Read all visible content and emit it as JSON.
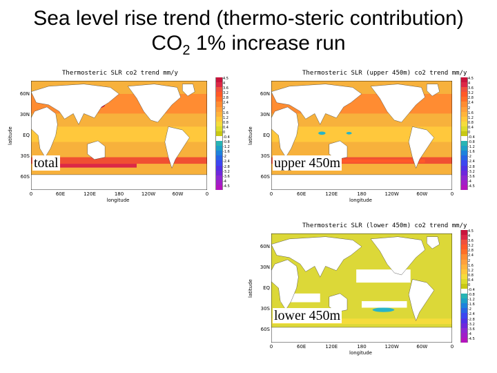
{
  "slide": {
    "title_line1": "Sea level rise trend (thermo-steric contribution)",
    "title_line2_pre": "CO",
    "title_line2_sub": "2",
    "title_line2_post": " 1% increase run"
  },
  "axes": {
    "lat_ticks": [
      "60N",
      "30N",
      "EQ",
      "30S",
      "60S"
    ],
    "lon_ticks": [
      "0",
      "60E",
      "120E",
      "180",
      "120W",
      "60W",
      "0"
    ],
    "ylabel": "latitude",
    "xlabel": "longitude"
  },
  "colorbar": {
    "ticks": [
      "4.5",
      "4",
      "3.6",
      "3.2",
      "2.8",
      "2.4",
      "2",
      "1.6",
      "1.2",
      "0.8",
      "0.4",
      "0",
      "-0.4",
      "-0.8",
      "-1.2",
      "-1.6",
      "-2",
      "-2.4",
      "-2.8",
      "-3.2",
      "-3.6",
      "-4",
      "-4.5"
    ],
    "colors": [
      "#c8143c",
      "#dc2846",
      "#f0503c",
      "#ff5a28",
      "#ff6e28",
      "#ff8c32",
      "#ffa03c",
      "#ffb43c",
      "#ffc83c",
      "#f5dc3c",
      "#dcdc2c",
      "#c8c814",
      "#ffffff",
      "#28b4b4",
      "#1ea0c8",
      "#1e82dc",
      "#2864e6",
      "#3c46f0",
      "#5032e6",
      "#6e28dc",
      "#8c28d2",
      "#a01ec8",
      "#b414be"
    ]
  },
  "panels": [
    {
      "id": "total",
      "title": "Thermosteric SLR co2 trend mm/y",
      "label": "total"
    },
    {
      "id": "upper",
      "title": "Thermosteric SLR (upper 450m) co2 trend mm/y",
      "label": "upper 450m"
    },
    {
      "id": "lower",
      "title": "Thermosteric SLR (lower 450m) co2 trend mm/y",
      "label": "lower 450m"
    }
  ]
}
